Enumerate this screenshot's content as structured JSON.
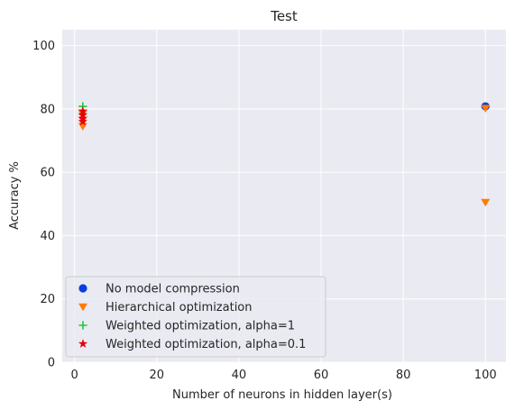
{
  "chart_data": {
    "type": "scatter",
    "title": "Test",
    "xlabel": "Number of neurons in hidden layer(s)",
    "ylabel": "Accuracy %",
    "xlim": [
      -3,
      105
    ],
    "ylim": [
      0,
      105
    ],
    "xticks": [
      0,
      20,
      40,
      60,
      80,
      100
    ],
    "yticks": [
      0,
      20,
      40,
      60,
      80,
      100
    ],
    "grid": true,
    "legend_position": "lower-left",
    "series": [
      {
        "name": "No model compression",
        "marker": "circle",
        "color": "#0b3ee0",
        "points": [
          [
            100,
            80.8
          ]
        ]
      },
      {
        "name": "Hierarchical optimization",
        "marker": "triangle-down",
        "color": "#ff7c00",
        "points": [
          [
            2,
            74.5
          ],
          [
            2,
            76.5
          ],
          [
            2,
            78.5
          ],
          [
            100,
            80.2
          ],
          [
            100,
            50.5
          ]
        ]
      },
      {
        "name": "Weighted optimization, alpha=1",
        "marker": "plus",
        "color": "#1ac938",
        "points": [
          [
            2,
            80.8
          ],
          [
            2,
            78.5
          ]
        ]
      },
      {
        "name": "Weighted optimization, alpha=0.1",
        "marker": "star",
        "color": "#e8000b",
        "points": [
          [
            2,
            79.3
          ],
          [
            2,
            78.0
          ],
          [
            2,
            77.0
          ],
          [
            2,
            76.0
          ]
        ]
      }
    ]
  }
}
